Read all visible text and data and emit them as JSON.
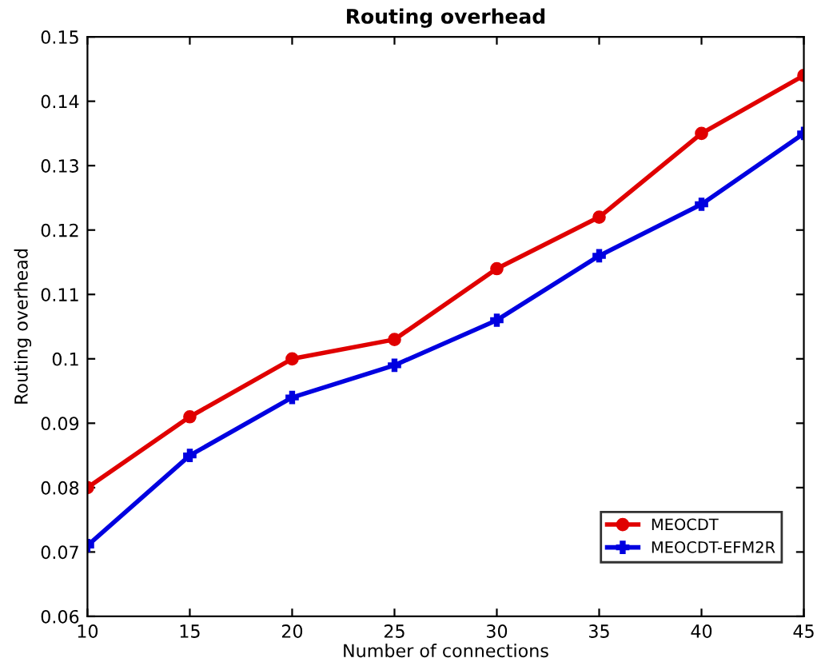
{
  "chart_data": {
    "type": "line",
    "title": "Routing overhead",
    "xlabel": "Number of connections",
    "ylabel": "Routing overhead",
    "x": [
      10,
      15,
      20,
      25,
      30,
      35,
      40,
      45
    ],
    "series": [
      {
        "name": "MEOCDT",
        "color": "#e00000",
        "marker": "circle",
        "values": [
          0.08,
          0.091,
          0.1,
          0.103,
          0.114,
          0.122,
          0.135,
          0.144
        ]
      },
      {
        "name": "MEOCDT-EFM2R",
        "color": "#0000e0",
        "marker": "cross",
        "values": [
          0.071,
          0.085,
          0.094,
          0.099,
          0.106,
          0.116,
          0.124,
          0.135
        ]
      }
    ],
    "xlim": [
      10,
      45
    ],
    "xticks": [
      10,
      15,
      20,
      25,
      30,
      35,
      40,
      45
    ],
    "ylim": [
      0.06,
      0.15
    ],
    "yticks": [
      0.06,
      0.07,
      0.08,
      0.09,
      0.1,
      0.11,
      0.12,
      0.13,
      0.14,
      0.15
    ],
    "legend": "bottom right",
    "grid": false,
    "line_style": "solid"
  }
}
